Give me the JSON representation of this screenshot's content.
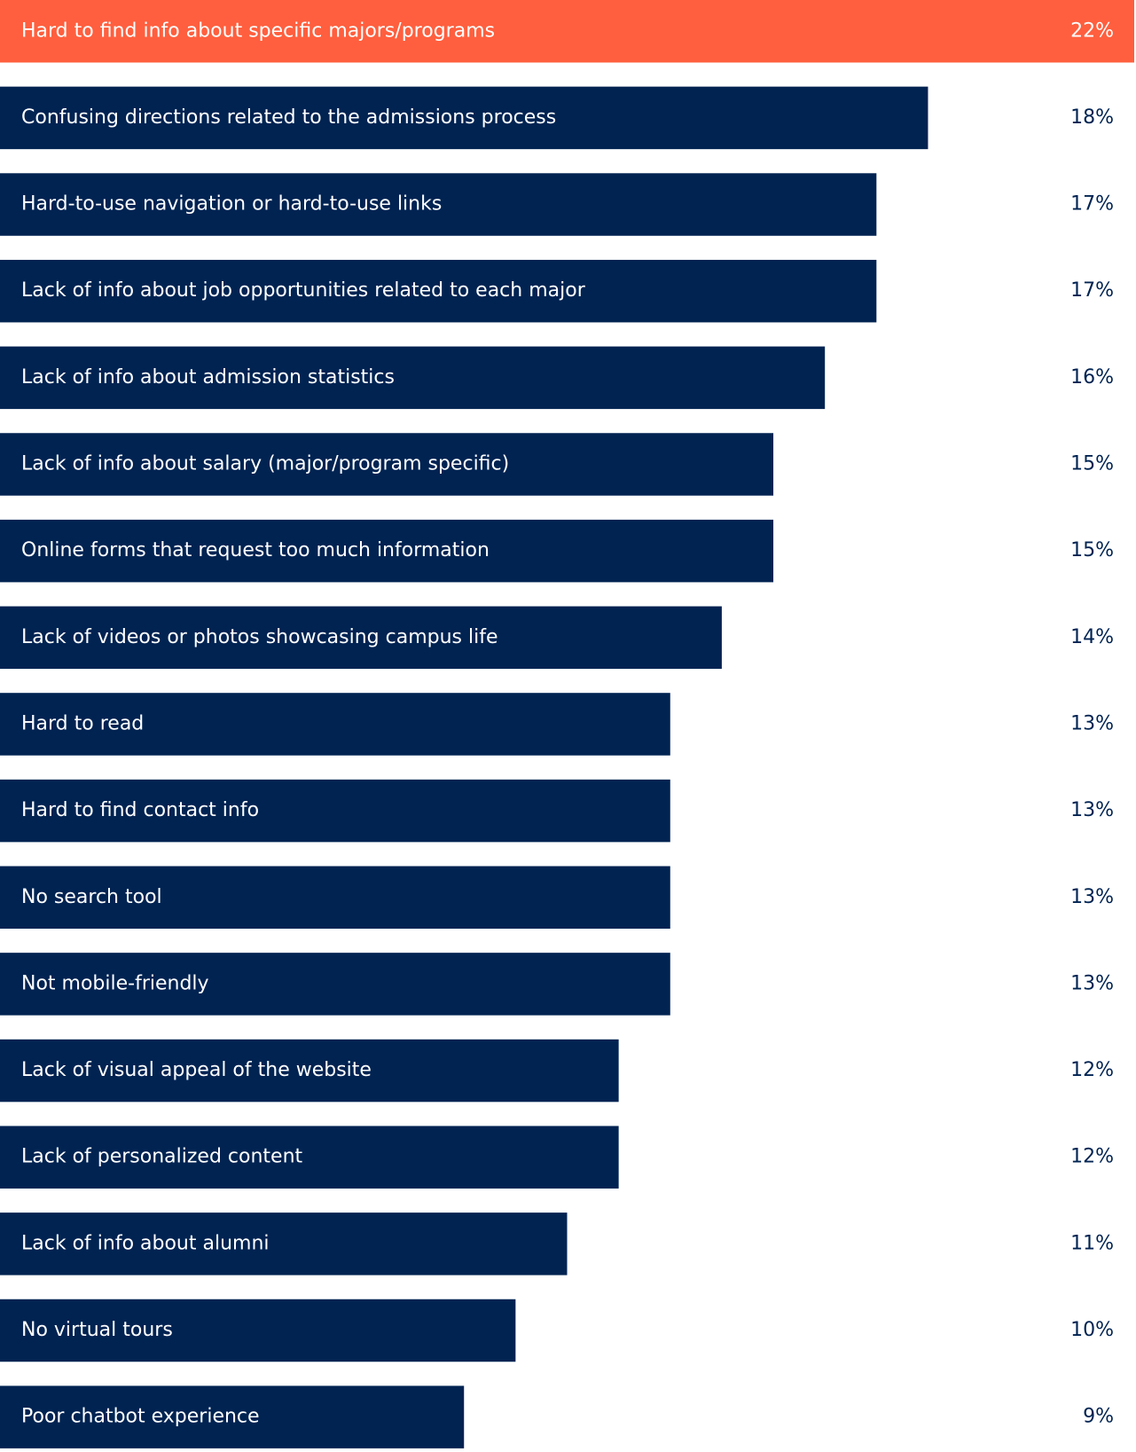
{
  "chart_data": {
    "type": "hbar",
    "categories": [
      "Hard to find info about specific majors/programs",
      "Confusing directions related to the admissions process",
      "Hard-to-use navigation or hard-to-use links",
      "Lack of info about job opportunities related to each major",
      "Lack of info about admission statistics",
      "Lack of info about salary (major/program specific)",
      "Online forms that request too much information",
      "Lack of videos or photos showcasing campus life",
      "Hard to read",
      "Hard to find contact info",
      "No search tool",
      "Not mobile-friendly",
      "Lack of visual appeal of the website",
      "Lack of personalized content",
      "Lack of info about alumni",
      "No virtual tours",
      "Poor chatbot experience"
    ],
    "values": [
      22,
      18,
      17,
      17,
      16,
      15,
      15,
      14,
      13,
      13,
      13,
      13,
      12,
      12,
      11,
      10,
      9
    ],
    "value_labels": [
      "22%",
      "18%",
      "17%",
      "17%",
      "16%",
      "15%",
      "15%",
      "14%",
      "13%",
      "13%",
      "13%",
      "13%",
      "12%",
      "12%",
      "11%",
      "10%",
      "9%"
    ],
    "colors": [
      "#ff5f3e",
      "#002352",
      "#002352",
      "#002352",
      "#002352",
      "#002352",
      "#002352",
      "#002352",
      "#002352",
      "#002352",
      "#002352",
      "#002352",
      "#002352",
      "#002352",
      "#002352",
      "#002352",
      "#002352"
    ],
    "xlim": [
      0,
      22
    ]
  }
}
